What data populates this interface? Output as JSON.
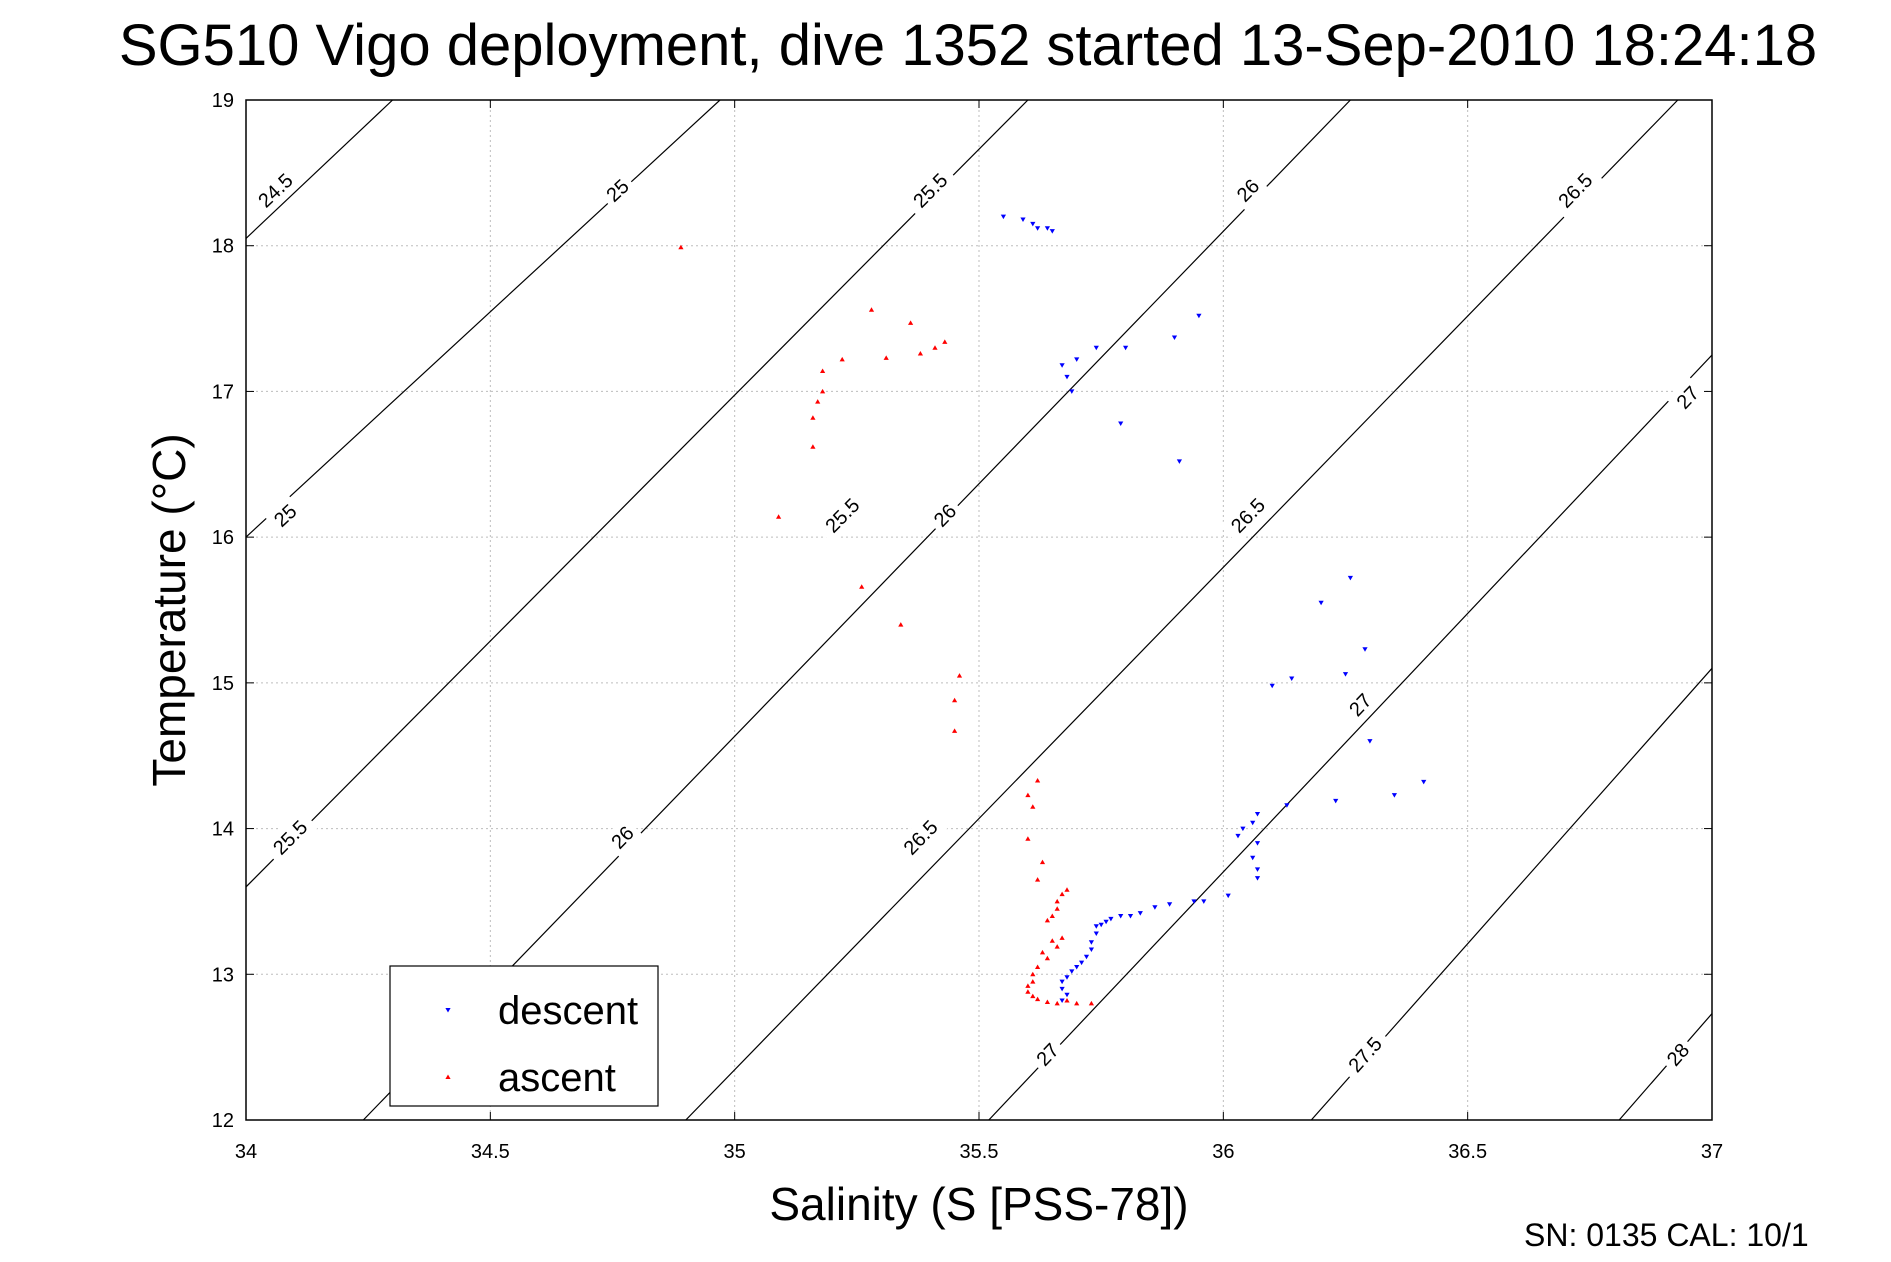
{
  "chart_data": {
    "type": "scatter",
    "title": "SG510 Vigo deployment, dive 1352 started 13-Sep-2010 18:24:18",
    "xlabel": "Salinity (S [PSS-78])",
    "ylabel": "Temperature (°C)",
    "xlim": [
      34,
      37
    ],
    "ylim": [
      12,
      19
    ],
    "xticks": [
      "34",
      "34.5",
      "35",
      "35.5",
      "36",
      "36.5",
      "37"
    ],
    "yticks": [
      "12",
      "13",
      "14",
      "15",
      "16",
      "17",
      "18",
      "19"
    ],
    "grid": true,
    "legend_position": "bottom-left",
    "footer": "SN: 0135  CAL: 10/1",
    "colors": {
      "descent": "#0000ff",
      "ascent": "#ff0000"
    },
    "contours": [
      {
        "label": "24.5",
        "points": [
          [
            34.0,
            18.05
          ],
          [
            34.3,
            19.0
          ]
        ],
        "label_at": [
          [
            34.06,
            18.38
          ]
        ]
      },
      {
        "label": "25",
        "points": [
          [
            34.0,
            16.0
          ],
          [
            34.97,
            19.0
          ]
        ],
        "label_at": [
          [
            34.08,
            16.15
          ],
          [
            34.76,
            18.38
          ]
        ]
      },
      {
        "label": "25.5",
        "points": [
          [
            34.0,
            13.6
          ],
          [
            35.6,
            19.0
          ]
        ],
        "label_at": [
          [
            34.09,
            13.94
          ],
          [
            35.22,
            16.15
          ],
          [
            35.4,
            18.38
          ]
        ]
      },
      {
        "label": "26",
        "points": [
          [
            34.24,
            12.0
          ],
          [
            36.26,
            19.0
          ]
        ],
        "label_at": [
          [
            34.77,
            13.94
          ],
          [
            35.43,
            16.15
          ],
          [
            36.05,
            18.38
          ]
        ]
      },
      {
        "label": "26.5",
        "points": [
          [
            34.9,
            12.0
          ],
          [
            36.93,
            19.0
          ]
        ],
        "label_at": [
          [
            35.38,
            13.94
          ],
          [
            36.05,
            16.15
          ],
          [
            36.72,
            18.38
          ]
        ]
      },
      {
        "label": "27",
        "points": [
          [
            35.52,
            12.0
          ],
          [
            37.0,
            17.25
          ]
        ],
        "label_at": [
          [
            35.64,
            12.45
          ],
          [
            36.28,
            14.85
          ],
          [
            36.95,
            16.96
          ]
        ]
      },
      {
        "label": "27.5",
        "points": [
          [
            36.18,
            12.0
          ],
          [
            37.0,
            15.1
          ]
        ],
        "label_at": [
          [
            36.29,
            12.45
          ]
        ]
      },
      {
        "label": "28",
        "points": [
          [
            36.81,
            12.0
          ],
          [
            37.0,
            12.73
          ]
        ],
        "label_at": [
          [
            36.93,
            12.45
          ]
        ]
      }
    ],
    "series": [
      {
        "name": "descent",
        "marker": "triangle-down",
        "points": [
          [
            35.55,
            18.2
          ],
          [
            35.59,
            18.18
          ],
          [
            35.61,
            18.15
          ],
          [
            35.62,
            18.12
          ],
          [
            35.64,
            18.12
          ],
          [
            35.65,
            18.1
          ],
          [
            35.95,
            17.52
          ],
          [
            35.9,
            17.37
          ],
          [
            35.8,
            17.3
          ],
          [
            35.74,
            17.3
          ],
          [
            35.7,
            17.22
          ],
          [
            35.67,
            17.18
          ],
          [
            35.68,
            17.1
          ],
          [
            35.69,
            17.0
          ],
          [
            35.79,
            16.78
          ],
          [
            35.91,
            16.52
          ],
          [
            36.26,
            15.72
          ],
          [
            36.2,
            15.55
          ],
          [
            36.29,
            15.23
          ],
          [
            36.25,
            15.06
          ],
          [
            36.14,
            15.03
          ],
          [
            36.1,
            14.98
          ],
          [
            36.3,
            14.6
          ],
          [
            36.41,
            14.32
          ],
          [
            36.35,
            14.23
          ],
          [
            36.23,
            14.19
          ],
          [
            36.13,
            14.16
          ],
          [
            36.07,
            14.1
          ],
          [
            36.06,
            14.04
          ],
          [
            36.04,
            14.0
          ],
          [
            36.03,
            13.95
          ],
          [
            36.07,
            13.9
          ],
          [
            36.06,
            13.8
          ],
          [
            36.07,
            13.72
          ],
          [
            36.07,
            13.66
          ],
          [
            36.01,
            13.54
          ],
          [
            35.96,
            13.5
          ],
          [
            35.94,
            13.5
          ],
          [
            35.89,
            13.48
          ],
          [
            35.86,
            13.46
          ],
          [
            35.83,
            13.42
          ],
          [
            35.81,
            13.4
          ],
          [
            35.79,
            13.4
          ],
          [
            35.77,
            13.38
          ],
          [
            35.76,
            13.36
          ],
          [
            35.75,
            13.34
          ],
          [
            35.74,
            13.33
          ],
          [
            35.74,
            13.28
          ],
          [
            35.73,
            13.22
          ],
          [
            35.73,
            13.17
          ],
          [
            35.72,
            13.12
          ],
          [
            35.71,
            13.08
          ],
          [
            35.7,
            13.05
          ],
          [
            35.69,
            13.02
          ],
          [
            35.68,
            12.98
          ],
          [
            35.67,
            12.95
          ],
          [
            35.67,
            12.9
          ],
          [
            35.68,
            12.86
          ],
          [
            35.67,
            12.82
          ]
        ]
      },
      {
        "name": "ascent",
        "marker": "triangle-up",
        "points": [
          [
            34.89,
            17.99
          ],
          [
            35.28,
            17.56
          ],
          [
            35.36,
            17.47
          ],
          [
            35.43,
            17.34
          ],
          [
            35.41,
            17.3
          ],
          [
            35.38,
            17.26
          ],
          [
            35.31,
            17.23
          ],
          [
            35.22,
            17.22
          ],
          [
            35.18,
            17.14
          ],
          [
            35.18,
            17.0
          ],
          [
            35.17,
            16.93
          ],
          [
            35.16,
            16.82
          ],
          [
            35.16,
            16.62
          ],
          [
            35.09,
            16.14
          ],
          [
            35.26,
            15.66
          ],
          [
            35.34,
            15.4
          ],
          [
            35.46,
            15.05
          ],
          [
            35.45,
            14.88
          ],
          [
            35.45,
            14.67
          ],
          [
            35.62,
            14.33
          ],
          [
            35.6,
            14.23
          ],
          [
            35.61,
            14.15
          ],
          [
            35.6,
            13.93
          ],
          [
            35.63,
            13.77
          ],
          [
            35.62,
            13.65
          ],
          [
            35.68,
            13.58
          ],
          [
            35.67,
            13.55
          ],
          [
            35.66,
            13.5
          ],
          [
            35.66,
            13.45
          ],
          [
            35.65,
            13.4
          ],
          [
            35.64,
            13.37
          ],
          [
            35.67,
            13.25
          ],
          [
            35.65,
            13.23
          ],
          [
            35.66,
            13.19
          ],
          [
            35.63,
            13.15
          ],
          [
            35.64,
            13.11
          ],
          [
            35.62,
            13.05
          ],
          [
            35.61,
            13.0
          ],
          [
            35.61,
            12.95
          ],
          [
            35.6,
            12.92
          ],
          [
            35.6,
            12.88
          ],
          [
            35.61,
            12.85
          ],
          [
            35.62,
            12.83
          ],
          [
            35.64,
            12.81
          ],
          [
            35.66,
            12.8
          ],
          [
            35.68,
            12.82
          ],
          [
            35.7,
            12.8
          ],
          [
            35.73,
            12.8
          ]
        ]
      }
    ]
  }
}
